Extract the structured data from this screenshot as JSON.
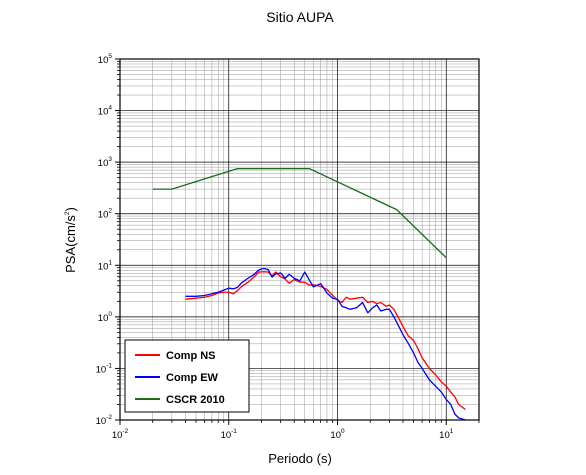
{
  "chart_data": {
    "type": "line",
    "title": "Sitio AUPA",
    "xlabel": "Periodo (s)",
    "ylabel": "PSA(cm/s",
    "ylabel_exponent": "2",
    "ylabel_close": ")",
    "x_scale": "log",
    "y_scale": "log",
    "xlim": [
      0.01,
      20
    ],
    "ylim": [
      0.01,
      100000
    ],
    "grid": true,
    "legend_position": "bottom-left",
    "x_ticks": [
      {
        "base": "10",
        "exp": "-2",
        "value": 0.01
      },
      {
        "base": "10",
        "exp": "-1",
        "value": 0.1
      },
      {
        "base": "10",
        "exp": "0",
        "value": 1
      },
      {
        "base": "10",
        "exp": "1",
        "value": 10
      }
    ],
    "y_ticks": [
      {
        "base": "10",
        "exp": "-2",
        "value": 0.01
      },
      {
        "base": "10",
        "exp": "-1",
        "value": 0.1
      },
      {
        "base": "10",
        "exp": "0",
        "value": 1
      },
      {
        "base": "10",
        "exp": "1",
        "value": 10
      },
      {
        "base": "10",
        "exp": "2",
        "value": 100
      },
      {
        "base": "10",
        "exp": "3",
        "value": 1000
      },
      {
        "base": "10",
        "exp": "4",
        "value": 10000
      },
      {
        "base": "10",
        "exp": "5",
        "value": 100000
      }
    ],
    "series": [
      {
        "name": "Comp NS",
        "color": "#ff0000",
        "x": [
          0.04,
          0.05,
          0.06,
          0.07,
          0.08,
          0.09,
          0.1,
          0.11,
          0.12,
          0.13,
          0.15,
          0.17,
          0.19,
          0.21,
          0.23,
          0.25,
          0.27,
          0.3,
          0.33,
          0.36,
          0.4,
          0.45,
          0.5,
          0.55,
          0.6,
          0.7,
          0.8,
          0.9,
          1.0,
          1.1,
          1.2,
          1.3,
          1.5,
          1.7,
          1.9,
          2.1,
          2.3,
          2.5,
          2.8,
          3.0,
          3.3,
          3.6,
          4.0,
          4.5,
          5.0,
          5.5,
          6.0,
          7.0,
          8.0,
          9.0,
          10.0,
          11.0,
          12.0,
          13.0,
          15.0
        ],
        "y": [
          2.2,
          2.3,
          2.4,
          2.6,
          2.9,
          3.0,
          3.0,
          2.8,
          3.2,
          3.8,
          4.7,
          5.9,
          7.4,
          7.5,
          7.4,
          6.2,
          7.4,
          6.0,
          5.4,
          4.5,
          5.3,
          4.7,
          4.7,
          4.1,
          4.2,
          3.9,
          3.4,
          2.6,
          2.1,
          1.9,
          2.4,
          2.2,
          2.3,
          2.4,
          1.9,
          2.0,
          1.8,
          1.9,
          1.6,
          1.7,
          1.4,
          1.0,
          0.65,
          0.42,
          0.35,
          0.24,
          0.16,
          0.1,
          0.075,
          0.055,
          0.045,
          0.035,
          0.028,
          0.02,
          0.016
        ]
      },
      {
        "name": "Comp EW",
        "color": "#0000ff",
        "x": [
          0.04,
          0.05,
          0.06,
          0.07,
          0.08,
          0.09,
          0.1,
          0.11,
          0.12,
          0.13,
          0.15,
          0.17,
          0.19,
          0.21,
          0.23,
          0.25,
          0.27,
          0.3,
          0.33,
          0.36,
          0.4,
          0.45,
          0.5,
          0.55,
          0.6,
          0.7,
          0.8,
          0.9,
          1.0,
          1.1,
          1.2,
          1.3,
          1.5,
          1.7,
          1.9,
          2.1,
          2.3,
          2.5,
          2.8,
          3.0,
          3.3,
          3.6,
          4.0,
          4.5,
          5.0,
          5.5,
          6.0,
          7.0,
          8.0,
          9.0,
          10.0,
          11.0,
          12.0,
          13.0,
          15.0
        ],
        "y": [
          2.5,
          2.5,
          2.6,
          2.8,
          3.0,
          3.3,
          3.6,
          3.5,
          3.7,
          4.5,
          5.6,
          6.6,
          8.2,
          8.7,
          8.3,
          5.9,
          6.8,
          7.1,
          5.6,
          6.7,
          5.6,
          5.0,
          7.4,
          5.2,
          3.8,
          4.4,
          2.9,
          2.3,
          2.2,
          1.6,
          1.5,
          1.4,
          1.5,
          1.9,
          1.2,
          1.5,
          1.7,
          1.3,
          1.4,
          1.4,
          1.0,
          0.7,
          0.45,
          0.3,
          0.2,
          0.13,
          0.1,
          0.06,
          0.045,
          0.035,
          0.025,
          0.02,
          0.013,
          0.011,
          0.01
        ]
      },
      {
        "name": "CSCR 2010",
        "color": "#1a6b1a",
        "x": [
          0.02,
          0.03,
          0.12,
          0.55,
          3.5,
          10.0
        ],
        "y": [
          300,
          300,
          750,
          750,
          120,
          14
        ]
      }
    ]
  }
}
